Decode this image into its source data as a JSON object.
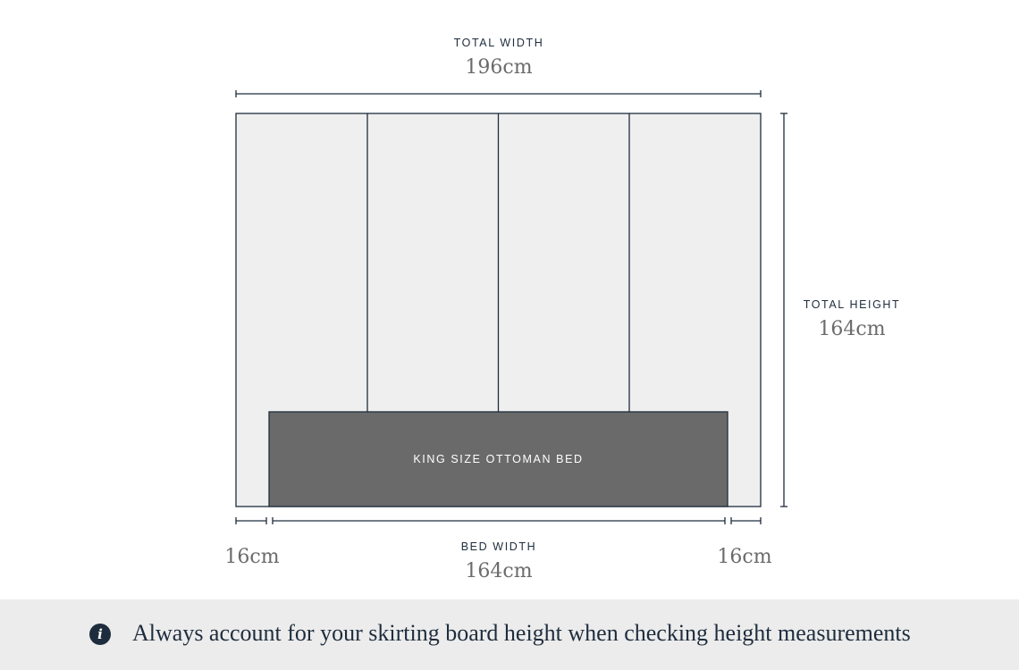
{
  "total_width": {
    "label": "TOTAL WIDTH",
    "value": "196cm"
  },
  "total_height": {
    "label": "TOTAL HEIGHT",
    "value": "164cm"
  },
  "bed_width": {
    "label": "BED WIDTH",
    "value": "164cm"
  },
  "left_gap": {
    "value": "16cm"
  },
  "right_gap": {
    "value": "16cm"
  },
  "bed": {
    "label": "KING SIZE OTTOMAN BED"
  },
  "headboard": {
    "panel_count": 4
  },
  "footer": {
    "icon": "info-icon",
    "note": "Always account for your skirting board height when checking height measurements"
  },
  "colors": {
    "stroke": "#1e2d3d",
    "panel_fill": "#efefef",
    "bed_fill": "#6a6a6a",
    "footer_bg": "#ececec"
  }
}
